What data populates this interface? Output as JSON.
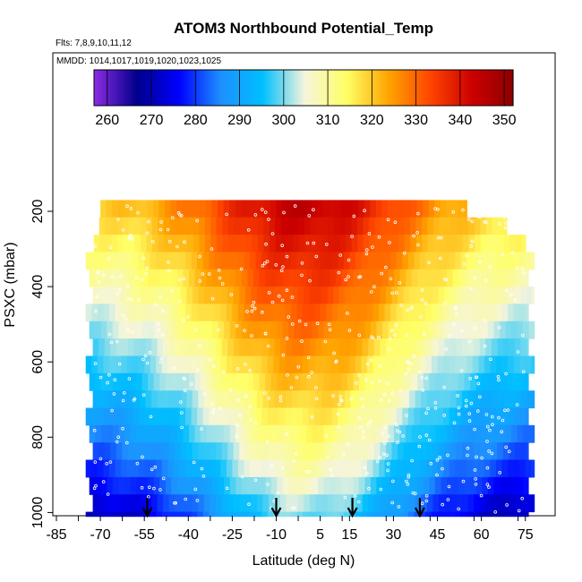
{
  "chart_data": {
    "type": "heatmap",
    "title": "ATOM3 Northbound Potential_Temp",
    "flights_label": "Flts: 7,8,9,10,11,12",
    "dates_label": "MMDD: 1014,1017,1019,1020,1023,1025",
    "xlabel": "Latitude (deg N)",
    "ylabel": "PSXC (mbar)",
    "xlim": [
      -85,
      80
    ],
    "ylim": [
      1000,
      60
    ],
    "y_reversed": true,
    "x_ticks": [
      -85,
      -70,
      -55,
      -40,
      -25,
      -10,
      5,
      15,
      30,
      45,
      60,
      75
    ],
    "y_ticks": [
      200,
      400,
      600,
      800,
      1000
    ],
    "colorbar": {
      "ticks": [
        260,
        270,
        280,
        290,
        300,
        310,
        320,
        330,
        340,
        350
      ],
      "min": 257,
      "max": 352,
      "colors": [
        "#8a2be2",
        "#00008b",
        "#0000ff",
        "#1e90ff",
        "#00bfff",
        "#f5f5dc",
        "#ffff66",
        "#ffa500",
        "#ff4500",
        "#cc0000",
        "#8b0000"
      ]
    },
    "data_extent": {
      "lat_range": [
        -75,
        78
      ],
      "pres_range": [
        170,
        1010
      ]
    },
    "field_model": {
      "description": "potential temperature vs latitude and pressure",
      "surface_theta_tropics": 300,
      "surface_theta_poles": 268,
      "top_theta_tropics": 345,
      "top_theta_poles": 318
    },
    "markers": {
      "latitudes": [
        -54,
        -10,
        16,
        39
      ],
      "type": "down-arrow"
    },
    "grid": false
  }
}
